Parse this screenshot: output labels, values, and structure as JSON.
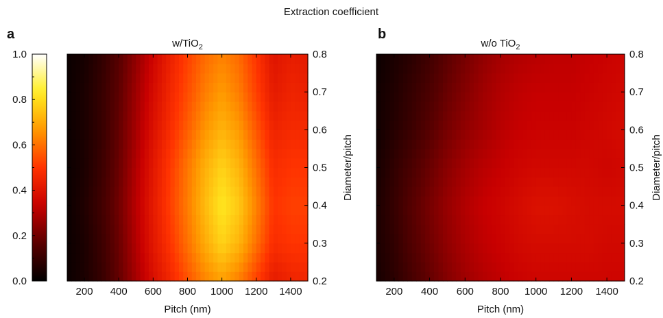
{
  "figure_title": "Extraction coefficient",
  "colorbar": {
    "ticks": [
      "0.0",
      "0.2",
      "0.4",
      "0.6",
      "0.8",
      "1.0"
    ],
    "tick_values": [
      0.0,
      0.2,
      0.4,
      0.6,
      0.8,
      1.0
    ],
    "range": [
      0.0,
      1.0
    ],
    "colormap": [
      "#000000",
      "#5a0000",
      "#c80000",
      "#ff3300",
      "#ff9900",
      "#ffee22",
      "#ffffff"
    ]
  },
  "chart_data": [
    {
      "type": "heatmap",
      "panel_letter": "a",
      "title_main": "w/TiO",
      "title_sub": "2",
      "xlabel": "Pitch (nm)",
      "ylabel": "Diameter/pitch",
      "x_ticks": [
        "200",
        "400",
        "600",
        "800",
        "1000",
        "1200",
        "1400"
      ],
      "y_ticks": [
        "0.2",
        "0.3",
        "0.4",
        "0.5",
        "0.6",
        "0.7",
        "0.8"
      ],
      "xlim": [
        100,
        1500
      ],
      "ylim": [
        0.2,
        0.8
      ],
      "clim": [
        0.0,
        1.0
      ],
      "x": [
        100,
        200,
        300,
        400,
        500,
        600,
        700,
        800,
        900,
        1000,
        1100,
        1200,
        1300,
        1400,
        1500
      ],
      "y": [
        0.2,
        0.3,
        0.4,
        0.5,
        0.6,
        0.7,
        0.8
      ],
      "z": [
        [
          0.02,
          0.05,
          0.1,
          0.18,
          0.28,
          0.38,
          0.46,
          0.55,
          0.63,
          0.68,
          0.62,
          0.52,
          0.42,
          0.45,
          0.46
        ],
        [
          0.02,
          0.05,
          0.11,
          0.19,
          0.3,
          0.41,
          0.5,
          0.6,
          0.7,
          0.78,
          0.72,
          0.6,
          0.48,
          0.5,
          0.5
        ],
        [
          0.02,
          0.06,
          0.12,
          0.2,
          0.31,
          0.42,
          0.52,
          0.62,
          0.73,
          0.82,
          0.76,
          0.63,
          0.5,
          0.52,
          0.52
        ],
        [
          0.02,
          0.05,
          0.11,
          0.19,
          0.3,
          0.41,
          0.51,
          0.61,
          0.71,
          0.78,
          0.72,
          0.6,
          0.48,
          0.5,
          0.5
        ],
        [
          0.02,
          0.05,
          0.1,
          0.18,
          0.28,
          0.39,
          0.48,
          0.57,
          0.66,
          0.72,
          0.67,
          0.56,
          0.45,
          0.47,
          0.47
        ],
        [
          0.02,
          0.05,
          0.1,
          0.17,
          0.27,
          0.37,
          0.46,
          0.54,
          0.62,
          0.67,
          0.62,
          0.52,
          0.42,
          0.45,
          0.44
        ],
        [
          0.02,
          0.04,
          0.09,
          0.16,
          0.25,
          0.35,
          0.44,
          0.52,
          0.59,
          0.63,
          0.59,
          0.5,
          0.4,
          0.43,
          0.42
        ]
      ]
    },
    {
      "type": "heatmap",
      "panel_letter": "b",
      "title_main": "w/o TiO",
      "title_sub": "2",
      "xlabel": "Pitch (nm)",
      "ylabel": "Diameter/pitch",
      "x_ticks": [
        "200",
        "400",
        "600",
        "800",
        "1000",
        "1200",
        "1400"
      ],
      "y_ticks": [
        "0.2",
        "0.3",
        "0.4",
        "0.5",
        "0.6",
        "0.7",
        "0.8"
      ],
      "xlim": [
        100,
        1500
      ],
      "ylim": [
        0.2,
        0.8
      ],
      "clim": [
        0.0,
        1.0
      ],
      "x": [
        100,
        200,
        300,
        400,
        500,
        600,
        700,
        800,
        900,
        1000,
        1100,
        1200,
        1300,
        1400,
        1500
      ],
      "y": [
        0.2,
        0.3,
        0.4,
        0.5,
        0.6,
        0.7,
        0.8
      ],
      "z": [
        [
          0.04,
          0.08,
          0.13,
          0.18,
          0.23,
          0.27,
          0.3,
          0.32,
          0.34,
          0.35,
          0.35,
          0.35,
          0.35,
          0.35,
          0.35
        ],
        [
          0.05,
          0.09,
          0.15,
          0.2,
          0.25,
          0.29,
          0.32,
          0.34,
          0.36,
          0.37,
          0.37,
          0.37,
          0.37,
          0.36,
          0.36
        ],
        [
          0.05,
          0.1,
          0.16,
          0.21,
          0.26,
          0.3,
          0.33,
          0.35,
          0.37,
          0.39,
          0.39,
          0.38,
          0.37,
          0.37,
          0.37
        ],
        [
          0.04,
          0.09,
          0.14,
          0.19,
          0.24,
          0.28,
          0.31,
          0.33,
          0.35,
          0.36,
          0.36,
          0.36,
          0.36,
          0.35,
          0.36
        ],
        [
          0.03,
          0.07,
          0.11,
          0.16,
          0.21,
          0.25,
          0.28,
          0.31,
          0.33,
          0.34,
          0.34,
          0.34,
          0.35,
          0.36,
          0.37
        ],
        [
          0.03,
          0.06,
          0.1,
          0.14,
          0.19,
          0.23,
          0.27,
          0.3,
          0.32,
          0.33,
          0.33,
          0.33,
          0.34,
          0.35,
          0.36
        ],
        [
          0.02,
          0.05,
          0.08,
          0.12,
          0.17,
          0.21,
          0.25,
          0.28,
          0.3,
          0.31,
          0.32,
          0.32,
          0.33,
          0.34,
          0.35
        ]
      ]
    }
  ]
}
